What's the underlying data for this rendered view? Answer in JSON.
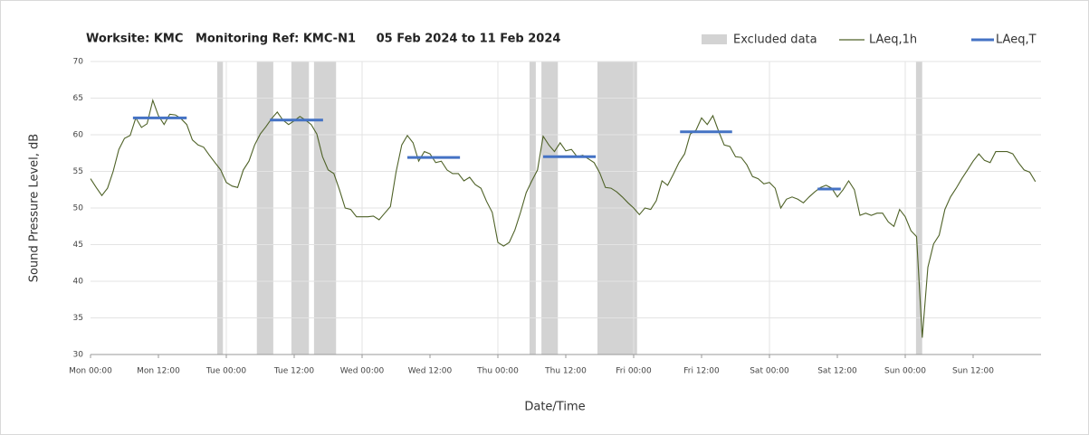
{
  "chart_data": {
    "type": "line",
    "title": "Worksite: KMC   Monitoring Ref: KMC-N1     05 Feb 2024 to 11 Feb 2024",
    "xlabel": "Date/Time",
    "ylabel": "Sound Pressure Level, dB",
    "xlim": [
      0,
      168
    ],
    "xticks": [
      {
        "value": 0,
        "label": "Mon 00:00"
      },
      {
        "value": 12,
        "label": "Mon 12:00"
      },
      {
        "value": 24,
        "label": "Tue 00:00"
      },
      {
        "value": 36,
        "label": "Tue 12:00"
      },
      {
        "value": 48,
        "label": "Wed 00:00"
      },
      {
        "value": 60,
        "label": "Wed 12:00"
      },
      {
        "value": 72,
        "label": "Thu 00:00"
      },
      {
        "value": 84,
        "label": "Thu 12:00"
      },
      {
        "value": 96,
        "label": "Fri 00:00"
      },
      {
        "value": 108,
        "label": "Fri 12:00"
      },
      {
        "value": 120,
        "label": "Sat 00:00"
      },
      {
        "value": 132,
        "label": "Sat 12:00"
      },
      {
        "value": 144,
        "label": "Sun 00:00"
      },
      {
        "value": 156,
        "label": "Sun 12:00"
      }
    ],
    "ylim": [
      30,
      70
    ],
    "yticks": [
      30,
      35,
      40,
      45,
      50,
      55,
      60,
      65,
      70
    ],
    "grid": true,
    "excluded": {
      "name": "Excluded data",
      "color": "#d3d3d3",
      "ranges": [
        [
          22.4,
          23.4
        ],
        [
          29.4,
          32.3
        ],
        [
          35.5,
          38.6
        ],
        [
          39.5,
          43.4
        ],
        [
          77.6,
          78.7
        ],
        [
          79.7,
          82.6
        ],
        [
          89.6,
          96.6
        ],
        [
          145.9,
          147.0
        ]
      ]
    },
    "series": [
      {
        "name": "LAeq,1h",
        "color": "#4f6228",
        "x": [
          0,
          1,
          2,
          3,
          4,
          5,
          6,
          7,
          8,
          9,
          10,
          11,
          12,
          13,
          14,
          15,
          16,
          17,
          18,
          19,
          20,
          21,
          22,
          23,
          24,
          25,
          26,
          27,
          28,
          29,
          30,
          31,
          32,
          33,
          34,
          35,
          36,
          37,
          38,
          39,
          40,
          41,
          42,
          43,
          44,
          45,
          46,
          47,
          48,
          49,
          50,
          51,
          52,
          53,
          54,
          55,
          56,
          57,
          58,
          59,
          60,
          61,
          62,
          63,
          64,
          65,
          66,
          67,
          68,
          69,
          70,
          71,
          72,
          73,
          74,
          75,
          76,
          77,
          78,
          79,
          80,
          81,
          82,
          83,
          84,
          85,
          86,
          87,
          88,
          89,
          90,
          91,
          92,
          93,
          94,
          95,
          96,
          97,
          98,
          99,
          100,
          101,
          102,
          103,
          104,
          105,
          106,
          107,
          108,
          109,
          110,
          111,
          112,
          113,
          114,
          115,
          116,
          117,
          118,
          119,
          120,
          121,
          122,
          123,
          124,
          125,
          126,
          127,
          128,
          129,
          130,
          131,
          132,
          133,
          134,
          135,
          136,
          137,
          138,
          139,
          140,
          141,
          142,
          143,
          144,
          145,
          146,
          147,
          148,
          149,
          150,
          151,
          152,
          153,
          154,
          155,
          156,
          157,
          158,
          159,
          160,
          161,
          162,
          163,
          164,
          165,
          166,
          167
        ],
        "values": [
          54.0,
          52.8,
          51.7,
          52.7,
          55.0,
          58.0,
          59.5,
          59.9,
          62.3,
          61.0,
          61.5,
          64.7,
          62.6,
          61.4,
          62.8,
          62.7,
          62.2,
          61.4,
          59.3,
          58.6,
          58.3,
          57.2,
          56.2,
          55.2,
          53.5,
          53.0,
          52.8,
          55.2,
          56.4,
          58.6,
          60.1,
          61.1,
          62.2,
          63.1,
          62.0,
          61.4,
          61.9,
          62.5,
          62.0,
          61.4,
          60.1,
          57.0,
          55.2,
          54.7,
          52.5,
          50.0,
          49.8,
          48.8,
          48.8,
          48.8,
          48.9,
          48.4,
          49.3,
          50.2,
          54.9,
          58.6,
          59.9,
          58.9,
          56.4,
          57.7,
          57.4,
          56.2,
          56.4,
          55.2,
          54.7,
          54.7,
          53.7,
          54.2,
          53.2,
          52.7,
          50.9,
          49.4,
          45.3,
          44.8,
          45.3,
          47.0,
          49.4,
          52.1,
          53.7,
          55.2,
          59.8,
          58.6,
          57.7,
          58.9,
          57.8,
          58.0,
          57.0,
          57.2,
          56.7,
          56.2,
          54.8,
          52.8,
          52.7,
          52.2,
          51.5,
          50.7,
          50.0,
          49.1,
          50.0,
          49.8,
          51.0,
          53.7,
          53.1,
          54.6,
          56.2,
          57.4,
          60.1,
          60.6,
          62.3,
          61.4,
          62.6,
          60.5,
          58.6,
          58.4,
          57.0,
          56.9,
          55.9,
          54.3,
          54.0,
          53.3,
          53.5,
          52.7,
          50.0,
          51.2,
          51.5,
          51.2,
          50.7,
          51.5,
          52.2,
          52.8,
          53.1,
          52.7,
          51.5,
          52.5,
          53.7,
          52.5,
          49.0,
          49.3,
          49.0,
          49.3,
          49.3,
          48.1,
          47.5,
          49.8,
          48.8,
          46.9,
          46.1,
          32.3,
          41.9,
          45.1,
          46.3,
          49.8,
          51.5,
          52.7,
          54.0,
          55.2,
          56.4,
          57.4,
          56.5,
          56.2,
          57.7,
          57.7,
          57.7,
          57.4,
          56.2,
          55.2,
          54.9,
          53.6
        ]
      },
      {
        "name": "LAeq,T",
        "color": "#4472c4",
        "segments": [
          {
            "x": [
              7.5,
              17.0
            ],
            "value": 62.3
          },
          {
            "x": [
              31.7,
              41.1
            ],
            "value": 62.0
          },
          {
            "x": [
              56.0,
              65.3
            ],
            "value": 56.9
          },
          {
            "x": [
              80.0,
              89.3
            ],
            "value": 57.0
          },
          {
            "x": [
              104.2,
              113.4
            ],
            "value": 60.4
          },
          {
            "x": [
              128.5,
              132.6
            ],
            "value": 52.6
          }
        ]
      }
    ]
  }
}
